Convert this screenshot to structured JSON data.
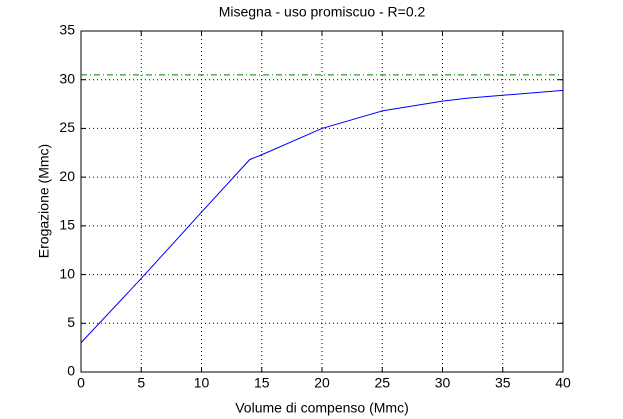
{
  "chart_data": {
    "type": "line",
    "title": "Misegna  -  uso promiscuo  -   R=0.2",
    "xlabel": "Volume di compenso (Mmc)",
    "ylabel": "Erogazione (Mmc)",
    "x": [
      0,
      5,
      10,
      14,
      15,
      20,
      25,
      30,
      32,
      35,
      40
    ],
    "series": [
      {
        "color": "#0000ff",
        "dash": "none",
        "values": [
          3,
          9.6,
          16.4,
          21.8,
          22.3,
          25,
          26.8,
          27.8,
          28.1,
          28.4,
          28.9
        ]
      },
      {
        "color": "#008000",
        "dash": "6,3,1,3",
        "values": [
          30.5,
          30.5,
          30.5,
          30.5,
          30.5,
          30.5,
          30.5,
          30.5,
          30.5,
          30.5,
          30.5
        ]
      }
    ],
    "xlim": [
      0,
      40
    ],
    "xticks": [
      0,
      5,
      10,
      15,
      20,
      25,
      30,
      35,
      40
    ],
    "ylim": [
      0,
      35
    ],
    "yticks": [
      0,
      5,
      10,
      15,
      20,
      25,
      30,
      35
    ],
    "grid": true
  }
}
